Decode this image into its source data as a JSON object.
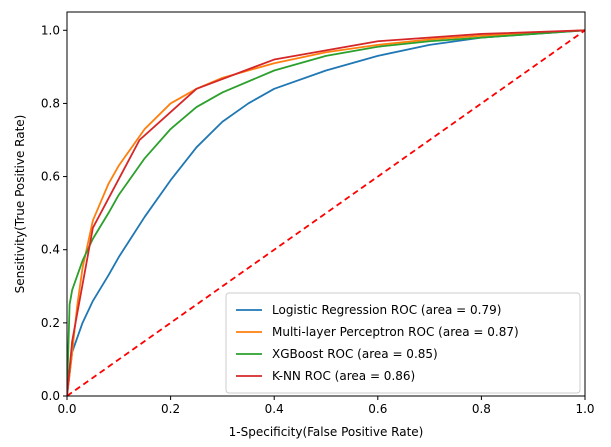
{
  "chart_data": {
    "type": "line",
    "title": "",
    "xlabel": "1-Specificity(False Positive Rate)",
    "ylabel": "Sensitivity(True Positive Rate)",
    "xlim": [
      0.0,
      1.0
    ],
    "ylim": [
      0.0,
      1.05
    ],
    "xticks": [
      "0.0",
      "0.2",
      "0.4",
      "0.6",
      "0.8",
      "1.0"
    ],
    "yticks": [
      "0.0",
      "0.2",
      "0.4",
      "0.6",
      "0.8",
      "1.0"
    ],
    "grid": false,
    "legend_position": "lower-right",
    "series": [
      {
        "name": "Logistic Regression ROC (area = 0.79)",
        "color": "#1f77b4",
        "style": "solid",
        "x": [
          0.0,
          0.01,
          0.03,
          0.05,
          0.08,
          0.1,
          0.15,
          0.2,
          0.25,
          0.3,
          0.35,
          0.4,
          0.5,
          0.6,
          0.7,
          0.8,
          0.9,
          1.0
        ],
        "y": [
          0.0,
          0.12,
          0.2,
          0.26,
          0.33,
          0.38,
          0.49,
          0.59,
          0.68,
          0.75,
          0.8,
          0.84,
          0.89,
          0.93,
          0.96,
          0.98,
          0.99,
          1.0
        ]
      },
      {
        "name": "Multi-layer Perceptron ROC (area = 0.87)",
        "color": "#ff7f0e",
        "style": "solid",
        "x": [
          0.0,
          0.01,
          0.02,
          0.03,
          0.05,
          0.08,
          0.1,
          0.15,
          0.2,
          0.25,
          0.3,
          0.4,
          0.5,
          0.6,
          0.7,
          0.8,
          0.9,
          1.0
        ],
        "y": [
          0.0,
          0.12,
          0.25,
          0.35,
          0.48,
          0.58,
          0.63,
          0.73,
          0.8,
          0.84,
          0.87,
          0.91,
          0.94,
          0.96,
          0.975,
          0.985,
          0.993,
          1.0
        ]
      },
      {
        "name": "XGBoost ROC (area = 0.85)",
        "color": "#2ca02c",
        "style": "solid",
        "x": [
          0.0,
          0.005,
          0.01,
          0.02,
          0.03,
          0.05,
          0.08,
          0.1,
          0.15,
          0.2,
          0.25,
          0.3,
          0.4,
          0.5,
          0.6,
          0.7,
          0.8,
          0.9,
          1.0
        ],
        "y": [
          0.0,
          0.25,
          0.29,
          0.33,
          0.37,
          0.43,
          0.5,
          0.55,
          0.65,
          0.73,
          0.79,
          0.83,
          0.89,
          0.93,
          0.955,
          0.97,
          0.98,
          0.99,
          1.0
        ]
      },
      {
        "name": "K-NN ROC (area = 0.86)",
        "color": "#d62728",
        "style": "solid",
        "x": [
          0.0,
          0.01,
          0.05,
          0.14,
          0.25,
          0.4,
          0.5,
          0.6,
          0.8,
          1.0
        ],
        "y": [
          0.0,
          0.15,
          0.46,
          0.7,
          0.84,
          0.92,
          0.945,
          0.97,
          0.99,
          1.0
        ]
      },
      {
        "name": "",
        "color": "#ff0000",
        "style": "dashed",
        "x": [
          0.0,
          1.0
        ],
        "y": [
          0.0,
          1.0
        ]
      }
    ]
  }
}
